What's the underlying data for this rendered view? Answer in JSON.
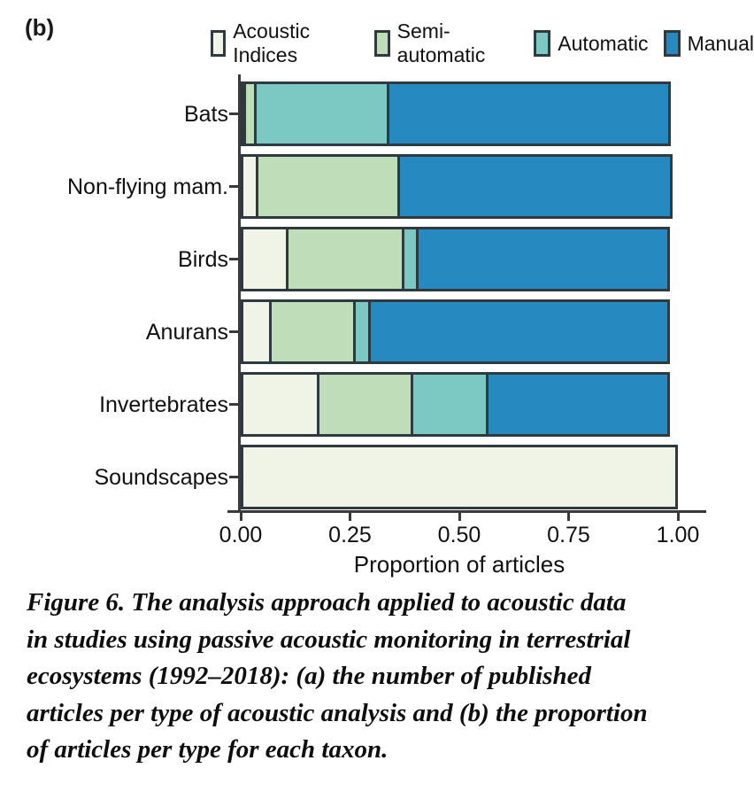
{
  "panel_label": "(b)",
  "legend": {
    "position": "top",
    "items": [
      {
        "label": "Acoustic Indices",
        "color": "#eff4e6"
      },
      {
        "label": "Semi-automatic",
        "color": "#c0ddba"
      },
      {
        "label": "Automatic",
        "color": "#7bc9c2"
      },
      {
        "label": "Manual",
        "color": "#2689bf"
      }
    ]
  },
  "chart_data": {
    "type": "bar",
    "variant": "horizontal_stacked_proportion",
    "title": "",
    "xlabel": "Proportion of articles",
    "ylabel": "",
    "xlim": [
      0,
      1
    ],
    "grid": false,
    "legend_position": "top",
    "bar_border_color": "#2e3a40",
    "axis_color": "#3a3a3a",
    "categories": [
      "Bats",
      "Non-flying mam.",
      "Birds",
      "Anurans",
      "Invertebrates",
      "Soundscapes"
    ],
    "series": [
      {
        "name": "Acoustic Indices",
        "color": "#eff4e6",
        "values": [
          0.01,
          0.04,
          0.11,
          0.07,
          0.18,
          1.0
        ]
      },
      {
        "name": "Semi-automatic",
        "color": "#c0ddba",
        "values": [
          0.03,
          0.33,
          0.27,
          0.2,
          0.22,
          0.0
        ]
      },
      {
        "name": "Automatic",
        "color": "#7bc9c2",
        "values": [
          0.31,
          0.0,
          0.04,
          0.04,
          0.18,
          0.0
        ]
      },
      {
        "name": "Manual",
        "color": "#2689bf",
        "values": [
          0.65,
          0.63,
          0.58,
          0.69,
          0.42,
          0.0
        ]
      }
    ],
    "xticks": [
      {
        "value": 0.0,
        "label": "0.00"
      },
      {
        "value": 0.25,
        "label": "0.25"
      },
      {
        "value": 0.5,
        "label": "0.50"
      },
      {
        "value": 0.75,
        "label": "0.75"
      },
      {
        "value": 1.0,
        "label": "1.00"
      }
    ]
  },
  "caption": {
    "lines": [
      "Figure 6. The analysis approach applied to acoustic data",
      "in studies using passive acoustic monitoring in terrestrial",
      "ecosystems (1992–2018): (a) the number of published",
      "articles per type of acoustic analysis and (b) the proportion",
      "of articles per type for each taxon."
    ]
  }
}
